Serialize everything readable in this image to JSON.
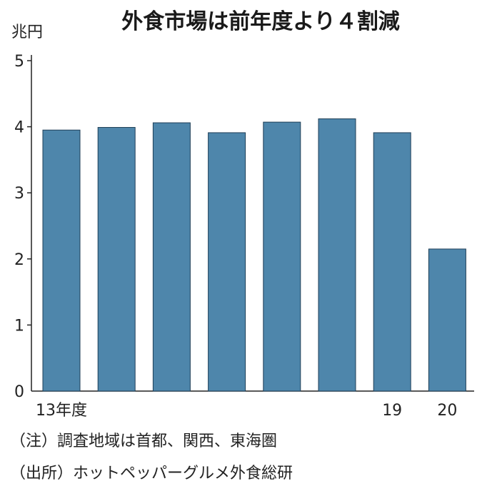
{
  "chart_data": {
    "type": "bar",
    "title": "外食市場は前年度より４割減",
    "unit_label": "兆円",
    "categories": [
      "13年度",
      "",
      "",
      "",
      "",
      "",
      "19",
      "20"
    ],
    "values": [
      3.95,
      3.99,
      4.06,
      3.91,
      4.07,
      4.12,
      3.91,
      2.15
    ],
    "ylim": [
      0,
      5
    ],
    "yticks": [
      "0",
      "1",
      "2",
      "3",
      "4",
      "5"
    ],
    "bar_color": "#4e86ab",
    "grid": false
  },
  "notes": {
    "note1": "（注）調査地域は首都、関西、東海圏",
    "source": "（出所）ホットペッパーグルメ外食総研"
  }
}
